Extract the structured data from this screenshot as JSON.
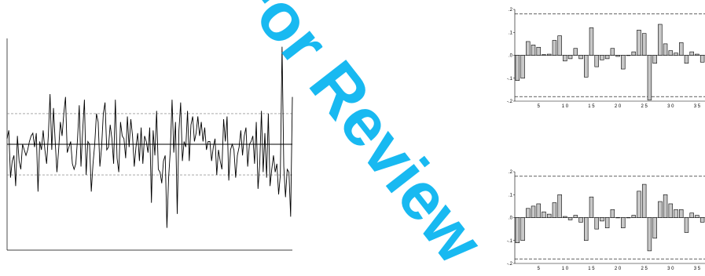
{
  "watermark": {
    "text": "For Review",
    "color": "#00b2f0"
  },
  "chart_data": [
    {
      "type": "line",
      "title": "",
      "xlabel": "",
      "ylabel": "",
      "ylim": [
        -1.9,
        1.9
      ],
      "reference_lines": [
        {
          "y": 0,
          "style": "solid"
        },
        {
          "y": 0.55,
          "style": "dashed"
        },
        {
          "y": -0.55,
          "style": "dashed"
        }
      ],
      "series": [
        {
          "values": [
            0.1,
            0.25,
            -0.6,
            -0.3,
            -0.2,
            -0.75,
            0.15,
            -0.3,
            -0.45,
            0,
            -0.1,
            -0.2,
            -0.1,
            0.05,
            0.15,
            0.2,
            -0.05,
            0.2,
            -0.85,
            0.05,
            -0.1,
            0.25,
            -0.1,
            -0.35,
            0.15,
            0.9,
            -0.1,
            0.65,
            0.05,
            -0.5,
            -0.1,
            0.4,
            0.15,
            0.55,
            0.85,
            -0.15,
            -0.05,
            0.05,
            -0.35,
            -0.45,
            -0.35,
            0.1,
            0.7,
            -0.4,
            0.25,
            0.8,
            -0.55,
            0.05,
            0,
            -0.85,
            -0.35,
            0,
            0.55,
            0.4,
            -0.4,
            -0.05,
            0.55,
            0.75,
            -0.1,
            -0.05,
            0.35,
            0.1,
            -0.35,
            0.8,
            -0.25,
            -0.5,
            0.4,
            0.15,
            0.1,
            -0.25,
            0.5,
            -0.05,
            0.45,
            0.15,
            -0.4,
            -0.05,
            0.2,
            -0.3,
            0.3,
            -0.35,
            0.15,
            0.05,
            -0.15,
            0.3,
            -1.05,
            0.25,
            -0.2,
            0.6,
            -0.45,
            -0.5,
            -0.7,
            -0.3,
            -0.2,
            -1.5,
            -0.6,
            -0.1,
            0.8,
            -0.15,
            0.4,
            -1.25,
            0.25,
            0.75,
            -0.3,
            0.05,
            -0.05,
            0.6,
            -0.3,
            0.35,
            0.5,
            0.05,
            0.2,
            0.5,
            0.15,
            0.4,
            0.05,
            0.3,
            -0.1,
            0.05,
            0.05,
            -0.3,
            -0.05,
            0.1,
            -0.55,
            -0.1,
            -0.3,
            -0.45,
            0.45,
            0.05,
            0.5,
            -0.65,
            -0.1,
            0,
            -0.1,
            -0.6,
            -0.2,
            -0.05,
            0.25,
            -0.2,
            0.15,
            0.3,
            -0.4,
            0,
            0.05,
            0.15,
            -0.35,
            0.4,
            -0.8,
            -0.35,
            0.6,
            -0.5,
            0.2,
            -0.6,
            0.55,
            -0.75,
            -0.45,
            -0.2,
            -0.5,
            -0.35,
            -0.9,
            -0.55,
            1.75,
            -0.4,
            -0.95,
            -0.45,
            -0.5,
            -1.3,
            0.85
          ]
        }
      ]
    },
    {
      "type": "bar",
      "title": "",
      "xlabel": "",
      "ylabel": "",
      "ylim": [
        -0.2,
        0.2
      ],
      "yticks": [
        ".2",
        ".1",
        ".0",
        "-.1",
        "-.2"
      ],
      "xticks": [
        "5",
        "10",
        "15",
        "20",
        "25",
        "30",
        "35"
      ],
      "reference_lines": [
        {
          "y": 0.18,
          "style": "dashed"
        },
        {
          "y": -0.18,
          "style": "dashed"
        }
      ],
      "series": [
        {
          "values": [
            -0.11,
            -0.1,
            0.06,
            0.045,
            0.035,
            0.003,
            0.005,
            0.065,
            0.085,
            -0.025,
            -0.015,
            0.03,
            -0.015,
            -0.095,
            0.12,
            -0.05,
            -0.02,
            -0.015,
            0.03,
            -0.005,
            -0.06,
            0.0,
            0.015,
            0.11,
            0.095,
            -0.195,
            -0.035,
            0.135,
            0.05,
            0.02,
            0.01,
            0.055,
            -0.035,
            0.015,
            0.005,
            -0.03
          ]
        }
      ]
    },
    {
      "type": "bar",
      "title": "",
      "xlabel": "",
      "ylabel": "",
      "ylim": [
        -0.2,
        0.2
      ],
      "yticks": [
        ".2",
        ".1",
        ".0",
        "-.1",
        "-.2"
      ],
      "xticks": [
        "5",
        "10",
        "15",
        "20",
        "25",
        "30",
        "35"
      ],
      "reference_lines": [
        {
          "y": 0.18,
          "style": "dashed"
        },
        {
          "y": -0.18,
          "style": "dashed"
        }
      ],
      "series": [
        {
          "values": [
            -0.11,
            -0.1,
            0.04,
            0.05,
            0.06,
            0.025,
            0.015,
            0.065,
            0.1,
            0.005,
            -0.01,
            0.01,
            -0.02,
            -0.1,
            0.09,
            -0.05,
            -0.015,
            -0.045,
            0.035,
            0.0,
            -0.045,
            0.0,
            0.01,
            0.115,
            0.145,
            -0.145,
            -0.09,
            0.07,
            0.1,
            0.06,
            0.035,
            0.035,
            -0.065,
            0.02,
            0.01,
            -0.02
          ]
        }
      ]
    }
  ]
}
